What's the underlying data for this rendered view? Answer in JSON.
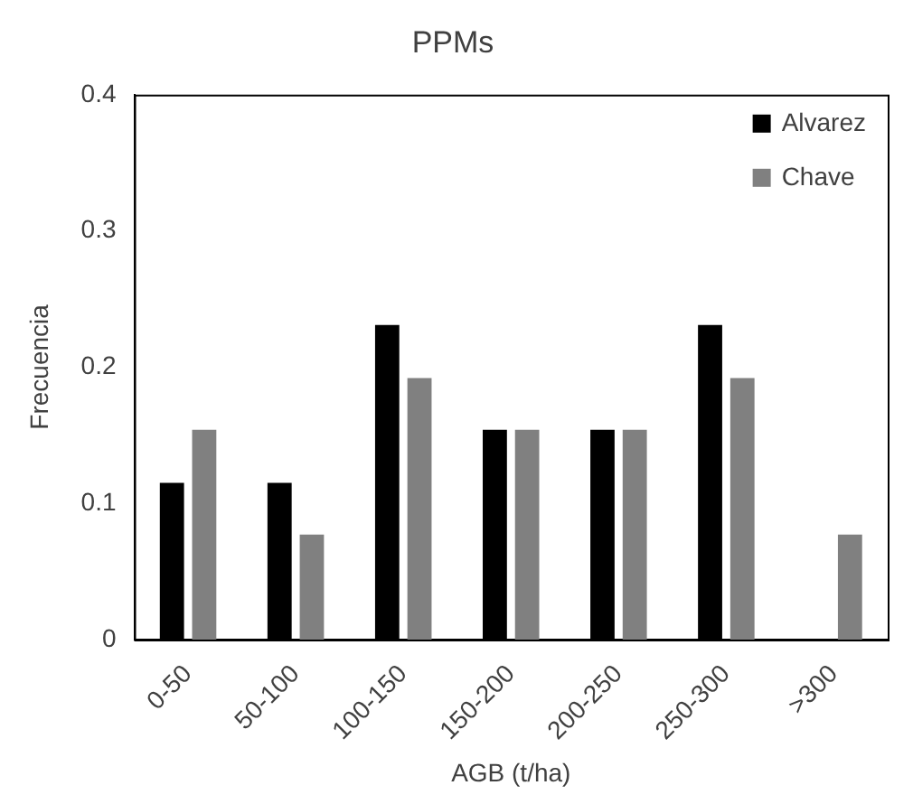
{
  "chart_data": {
    "type": "bar",
    "title": "PPMs",
    "xlabel": "AGB (t/ha)",
    "ylabel": "Frecuencia",
    "categories": [
      "0-50",
      "50-100",
      "100-150",
      "150-200",
      "200-250",
      "250-300",
      ">300"
    ],
    "series": [
      {
        "name": "Alvarez",
        "color": "#000000",
        "values": [
          0.115,
          0.115,
          0.231,
          0.154,
          0.154,
          0.231,
          0
        ]
      },
      {
        "name": "Chave",
        "color": "#808080",
        "values": [
          0.154,
          0.077,
          0.192,
          0.154,
          0.154,
          0.192,
          0.077
        ]
      }
    ],
    "ylim": [
      0,
      0.4
    ],
    "yticks": [
      0,
      0.1,
      0.2,
      0.3,
      0.4
    ],
    "grid": false,
    "legend": "top right"
  }
}
